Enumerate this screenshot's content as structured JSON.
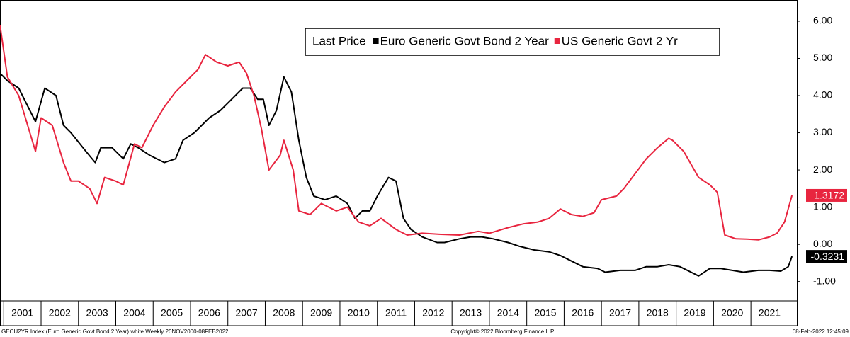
{
  "chart_data": {
    "type": "line",
    "legend_title": "Last Price",
    "legend": "top-right",
    "grid": false,
    "xlim": [
      2000.9,
      2022.23
    ],
    "xticks": [
      {
        "value": 2001,
        "label": "2001"
      },
      {
        "value": 2002,
        "label": "2002"
      },
      {
        "value": 2003,
        "label": "2003"
      },
      {
        "value": 2004,
        "label": "2004"
      },
      {
        "value": 2005,
        "label": "2005"
      },
      {
        "value": 2006,
        "label": "2006"
      },
      {
        "value": 2007,
        "label": "2007"
      },
      {
        "value": 2008,
        "label": "2008"
      },
      {
        "value": 2009,
        "label": "2009"
      },
      {
        "value": 2010,
        "label": "2010"
      },
      {
        "value": 2011,
        "label": "2011"
      },
      {
        "value": 2012,
        "label": "2012"
      },
      {
        "value": 2013,
        "label": "2013"
      },
      {
        "value": 2014,
        "label": "2014"
      },
      {
        "value": 2015,
        "label": "2015"
      },
      {
        "value": 2016,
        "label": "2016"
      },
      {
        "value": 2017,
        "label": "2017"
      },
      {
        "value": 2018,
        "label": "2018"
      },
      {
        "value": 2019,
        "label": "2019"
      },
      {
        "value": 2020,
        "label": "2020"
      },
      {
        "value": 2021,
        "label": "2021"
      }
    ],
    "ylim": [
      -1.52,
      6.57
    ],
    "yticks": [
      {
        "value": -1,
        "label": "-1.00"
      },
      {
        "value": 0,
        "label": "0.00"
      },
      {
        "value": 1,
        "label": "1.00"
      },
      {
        "value": 2,
        "label": "2.00"
      },
      {
        "value": 3,
        "label": "3.00"
      },
      {
        "value": 4,
        "label": "4.00"
      },
      {
        "value": 5,
        "label": "5.00"
      },
      {
        "value": 6,
        "label": "6.00"
      }
    ],
    "series": [
      {
        "name": "Euro Generic Govt Bond 2 Year",
        "color": "#000000",
        "last_label": "-0.3231",
        "x": [
          2000.9,
          2001.1,
          2001.4,
          2001.7,
          2001.85,
          2002.1,
          2002.4,
          2002.6,
          2002.8,
          2003.2,
          2003.45,
          2003.6,
          2003.9,
          2004.2,
          2004.4,
          2004.6,
          2004.9,
          2005.3,
          2005.6,
          2005.8,
          2006.1,
          2006.5,
          2006.8,
          2007.1,
          2007.4,
          2007.6,
          2007.8,
          2007.95,
          2008.1,
          2008.3,
          2008.5,
          2008.7,
          2008.9,
          2009.1,
          2009.3,
          2009.6,
          2009.9,
          2010.2,
          2010.4,
          2010.6,
          2010.8,
          2011.0,
          2011.3,
          2011.5,
          2011.7,
          2011.9,
          2012.2,
          2012.6,
          2012.8,
          2013.2,
          2013.5,
          2013.8,
          2014.1,
          2014.5,
          2014.8,
          2015.2,
          2015.6,
          2015.9,
          2016.2,
          2016.5,
          2016.9,
          2017.1,
          2017.5,
          2017.9,
          2018.2,
          2018.5,
          2018.8,
          2019.1,
          2019.4,
          2019.6,
          2019.9,
          2020.2,
          2020.5,
          2020.8,
          2021.2,
          2021.5,
          2021.8,
          2022.0,
          2022.1
        ],
        "values": [
          4.6,
          4.4,
          4.2,
          3.6,
          3.3,
          4.2,
          4.0,
          3.2,
          3.0,
          2.5,
          2.2,
          2.6,
          2.6,
          2.3,
          2.7,
          2.6,
          2.4,
          2.2,
          2.3,
          2.8,
          3.0,
          3.4,
          3.6,
          3.9,
          4.2,
          4.2,
          3.9,
          3.9,
          3.2,
          3.6,
          4.5,
          4.1,
          2.8,
          1.8,
          1.3,
          1.2,
          1.3,
          1.1,
          0.7,
          0.9,
          0.9,
          1.3,
          1.8,
          1.7,
          0.7,
          0.4,
          0.2,
          0.05,
          0.05,
          0.15,
          0.2,
          0.2,
          0.15,
          0.05,
          -0.05,
          -0.15,
          -0.2,
          -0.3,
          -0.45,
          -0.6,
          -0.65,
          -0.75,
          -0.7,
          -0.7,
          -0.6,
          -0.6,
          -0.55,
          -0.6,
          -0.75,
          -0.85,
          -0.65,
          -0.65,
          -0.7,
          -0.75,
          -0.7,
          -0.7,
          -0.72,
          -0.6,
          -0.3231
        ]
      },
      {
        "name": "US Generic Govt 2 Yr",
        "color": "#e8253f",
        "last_label": "1.3172",
        "x": [
          2000.9,
          2001.1,
          2001.4,
          2001.7,
          2001.85,
          2002.0,
          2002.3,
          2002.6,
          2002.8,
          2003.0,
          2003.3,
          2003.5,
          2003.7,
          2004.0,
          2004.2,
          2004.5,
          2004.7,
          2005.0,
          2005.3,
          2005.6,
          2005.9,
          2006.2,
          2006.4,
          2006.7,
          2007.0,
          2007.3,
          2007.5,
          2007.7,
          2007.9,
          2008.1,
          2008.4,
          2008.5,
          2008.75,
          2008.9,
          2009.2,
          2009.5,
          2009.9,
          2010.2,
          2010.5,
          2010.8,
          2011.1,
          2011.5,
          2011.8,
          2012.2,
          2012.7,
          2013.2,
          2013.7,
          2014.0,
          2014.5,
          2014.9,
          2015.3,
          2015.6,
          2015.9,
          2016.2,
          2016.5,
          2016.8,
          2017.0,
          2017.4,
          2017.6,
          2017.9,
          2018.2,
          2018.5,
          2018.8,
          2018.9,
          2019.2,
          2019.6,
          2019.9,
          2020.1,
          2020.3,
          2020.6,
          2020.9,
          2021.2,
          2021.5,
          2021.7,
          2021.9,
          2022.1
        ],
        "values": [
          5.9,
          4.5,
          4.0,
          3.0,
          2.5,
          3.4,
          3.2,
          2.2,
          1.7,
          1.7,
          1.5,
          1.1,
          1.8,
          1.7,
          1.6,
          2.7,
          2.6,
          3.2,
          3.7,
          4.1,
          4.4,
          4.7,
          5.1,
          4.9,
          4.8,
          4.9,
          4.6,
          4.0,
          3.1,
          2.0,
          2.4,
          2.8,
          2.0,
          0.9,
          0.8,
          1.1,
          0.9,
          1.0,
          0.6,
          0.5,
          0.7,
          0.4,
          0.25,
          0.3,
          0.27,
          0.25,
          0.35,
          0.3,
          0.45,
          0.55,
          0.6,
          0.7,
          0.95,
          0.8,
          0.75,
          0.85,
          1.2,
          1.3,
          1.5,
          1.9,
          2.3,
          2.6,
          2.85,
          2.8,
          2.5,
          1.8,
          1.6,
          1.4,
          0.25,
          0.15,
          0.14,
          0.12,
          0.2,
          0.3,
          0.6,
          1.3172
        ]
      }
    ],
    "footer_left": "GECU2YR Index (Euro Generic Govt Bond 2 Year) white  Weekly 20NOV2000-08FEB2022",
    "footer_center": "Copyright© 2022 Bloomberg Finance L.P.",
    "footer_right": "08-Feb-2022 12:45:09"
  }
}
